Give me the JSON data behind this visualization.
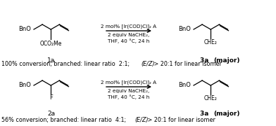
{
  "figsize": [
    3.92,
    1.8
  ],
  "dpi": 100,
  "background": "white",
  "lw": 0.9,
  "reaction1": {
    "reagent_line1": "2 mol% [Ir(COD)Cl]₂ A",
    "reagent_line2": "2 equiv NaCHE₂,",
    "reagent_line3": "THF, 40 °C, 24 h",
    "sm_label": "1a",
    "leaving": "OCO₂Me",
    "prod_label": "3a",
    "prod_label2": "(major)",
    "conversion": "100% conversion; branched: linear ratio  2:1; ",
    "ez": "(E/Z)",
    "rest": " > 20:1 for linear isomer"
  },
  "reaction2": {
    "reagent_line1": "2 mol% [Ir(COD)Cl]₂ A",
    "reagent_line2": "2 equiv NaCHE₂,",
    "reagent_line3": "THF, 40 °C, 24 h",
    "sm_label": "2a",
    "leaving": "F",
    "prod_label": "3a",
    "prod_label2": "(major)",
    "conversion": "56% conversion; branched: linear ratio  4:1; ",
    "ez": "(E/Z)",
    "rest": " > 20:1 for linear isomer"
  },
  "fs_struct": 6.0,
  "fs_label": 6.5,
  "fs_reagent": 5.2,
  "fs_caption": 5.8
}
